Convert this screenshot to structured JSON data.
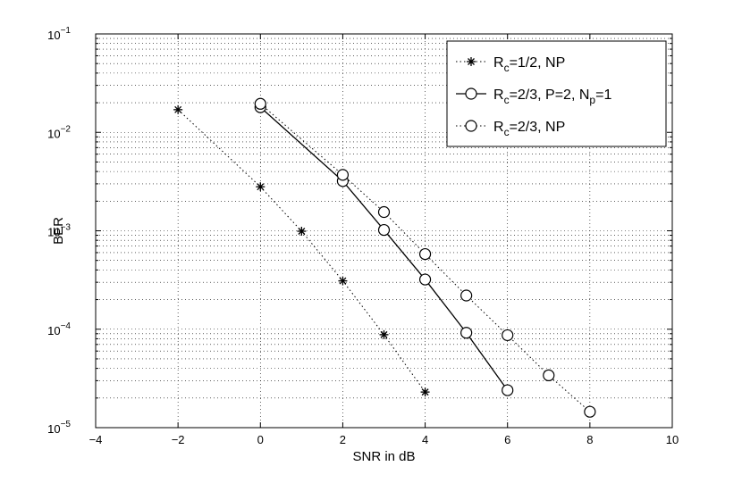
{
  "chart_data": {
    "type": "line",
    "title": "",
    "xlabel": "SNR in dB",
    "ylabel": "BER",
    "xlim": [
      -4,
      10
    ],
    "ylim": [
      1e-05,
      0.1
    ],
    "yscale": "log",
    "grid": true,
    "legend_position": "top-right",
    "x_ticks": [
      "−4",
      "−2",
      "0",
      "2",
      "4",
      "6",
      "8",
      "10"
    ],
    "y_ticks": [
      {
        "base": "10",
        "exp": "−5"
      },
      {
        "base": "10",
        "exp": "−4"
      },
      {
        "base": "10",
        "exp": "−3"
      },
      {
        "base": "10",
        "exp": "−2"
      },
      {
        "base": "10",
        "exp": "−1"
      }
    ],
    "series": [
      {
        "name": "R_c=1/2, NP",
        "legend": {
          "main": "R",
          "sub": "c",
          "rest": "=1/2, NP"
        },
        "marker": "star",
        "line": "dotted",
        "x": [
          -2,
          0,
          1,
          2,
          3,
          4
        ],
        "y": [
          0.017,
          0.0028,
          0.00099,
          0.00031,
          8.8e-05,
          2.3e-05
        ]
      },
      {
        "name": "R_c=2/3, P=2, N_p=1",
        "legend": {
          "main": "R",
          "sub": "c",
          "rest": "=2/3, P=2, N",
          "sub2": "p",
          "rest2": "=1"
        },
        "marker": "circle",
        "line": "solid",
        "x": [
          0,
          2,
          3,
          4,
          5,
          6
        ],
        "y": [
          0.018,
          0.0032,
          0.00102,
          0.00032,
          9.2e-05,
          2.4e-05
        ]
      },
      {
        "name": "R_c=2/3, NP",
        "legend": {
          "main": "R",
          "sub": "c",
          "rest": "=2/3, NP"
        },
        "marker": "circle",
        "line": "dotted",
        "x": [
          0,
          2,
          3,
          4,
          5,
          6,
          7,
          8
        ],
        "y": [
          0.0195,
          0.0037,
          0.00155,
          0.00058,
          0.00022,
          8.7e-05,
          3.4e-05,
          1.45e-05
        ]
      }
    ]
  }
}
